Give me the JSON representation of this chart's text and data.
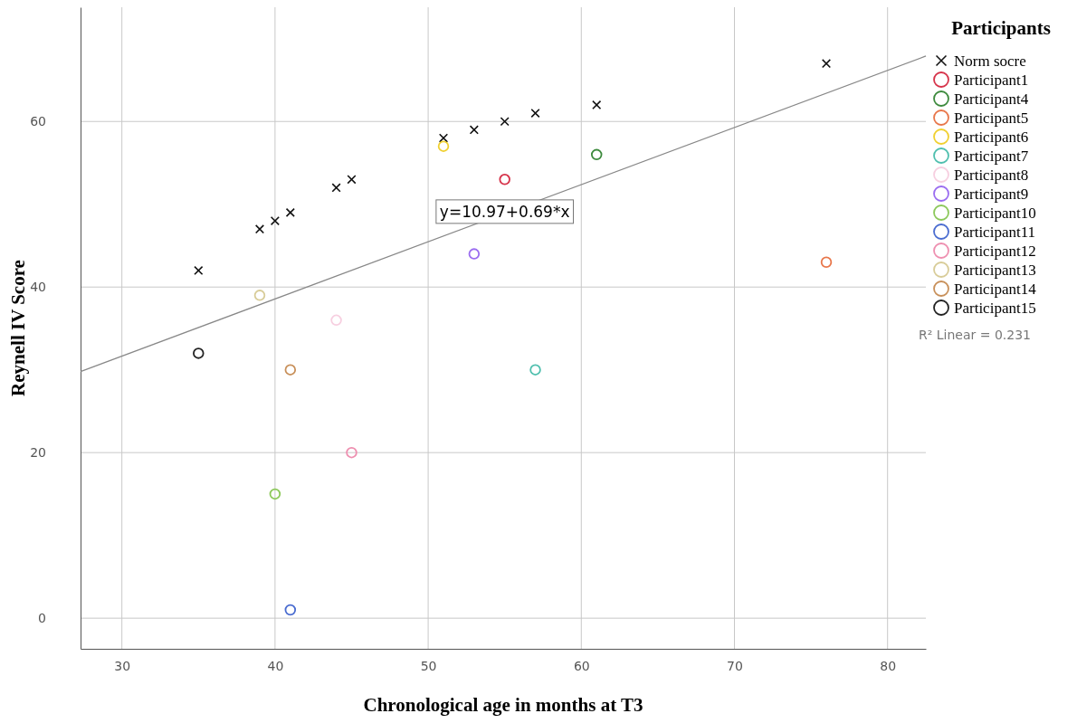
{
  "chart_data": {
    "type": "scatter",
    "xlabel": "Chronological age in months at T3",
    "ylabel": "Reynell IV Score",
    "legend_title": "Participants",
    "xlim": [
      27.3,
      82.5
    ],
    "xticks": [
      30,
      40,
      50,
      60,
      70,
      80
    ],
    "ylim": [
      -3.7,
      73.8
    ],
    "yticks": [
      0,
      20,
      40,
      60
    ],
    "grid": true,
    "legend": "right",
    "annotations": [
      {
        "text": "y=10.97+0.69*x",
        "x": 55,
        "y": 49
      },
      "R² Linear = 0.231"
    ],
    "series": [
      {
        "name": "Norm socre",
        "color": "#111111",
        "marker": "cross",
        "x": [
          35,
          39,
          40,
          41,
          44,
          45,
          51,
          53,
          55,
          57,
          61,
          76
        ],
        "values": [
          42,
          47,
          48,
          49,
          52,
          53,
          58,
          59,
          60,
          61,
          62,
          67
        ]
      },
      {
        "name": "Participant1",
        "color": "#d6334a",
        "marker": "circle",
        "x": [
          55
        ],
        "values": [
          53
        ]
      },
      {
        "name": "Participant4",
        "color": "#3d8a3d",
        "marker": "circle",
        "x": [
          61
        ],
        "values": [
          56
        ]
      },
      {
        "name": "Participant5",
        "color": "#e8764a",
        "marker": "circle",
        "x": [
          76
        ],
        "values": [
          43
        ]
      },
      {
        "name": "Participant6",
        "color": "#f0d030",
        "marker": "circle",
        "x": [
          51
        ],
        "values": [
          57
        ]
      },
      {
        "name": "Participant7",
        "color": "#4fbfae",
        "marker": "circle",
        "x": [
          57
        ],
        "values": [
          30
        ]
      },
      {
        "name": "Participant8",
        "color": "#f7cfe0",
        "marker": "circle",
        "x": [
          44
        ],
        "values": [
          36
        ]
      },
      {
        "name": "Participant9",
        "color": "#9a6cf0",
        "marker": "circle",
        "x": [
          53
        ],
        "values": [
          44
        ]
      },
      {
        "name": "Participant10",
        "color": "#8cc85a",
        "marker": "circle",
        "x": [
          40
        ],
        "values": [
          15
        ]
      },
      {
        "name": "Participant11",
        "color": "#4a6cd0",
        "marker": "circle",
        "x": [
          41
        ],
        "values": [
          1
        ]
      },
      {
        "name": "Participant12",
        "color": "#ee8fb0",
        "marker": "circle",
        "x": [
          45
        ],
        "values": [
          20
        ]
      },
      {
        "name": "Participant13",
        "color": "#d8cc98",
        "marker": "circle",
        "x": [
          39
        ],
        "values": [
          39
        ]
      },
      {
        "name": "Participant14",
        "color": "#c8905a",
        "marker": "circle",
        "x": [
          41
        ],
        "values": [
          30
        ]
      },
      {
        "name": "Participant15",
        "color": "#222222",
        "marker": "circle",
        "x": [
          35
        ],
        "values": [
          32
        ]
      },
      {
        "type": "line",
        "color": "#888888",
        "x": [
          27.3,
          82.5
        ],
        "values": [
          29.8,
          67.9
        ]
      }
    ]
  }
}
